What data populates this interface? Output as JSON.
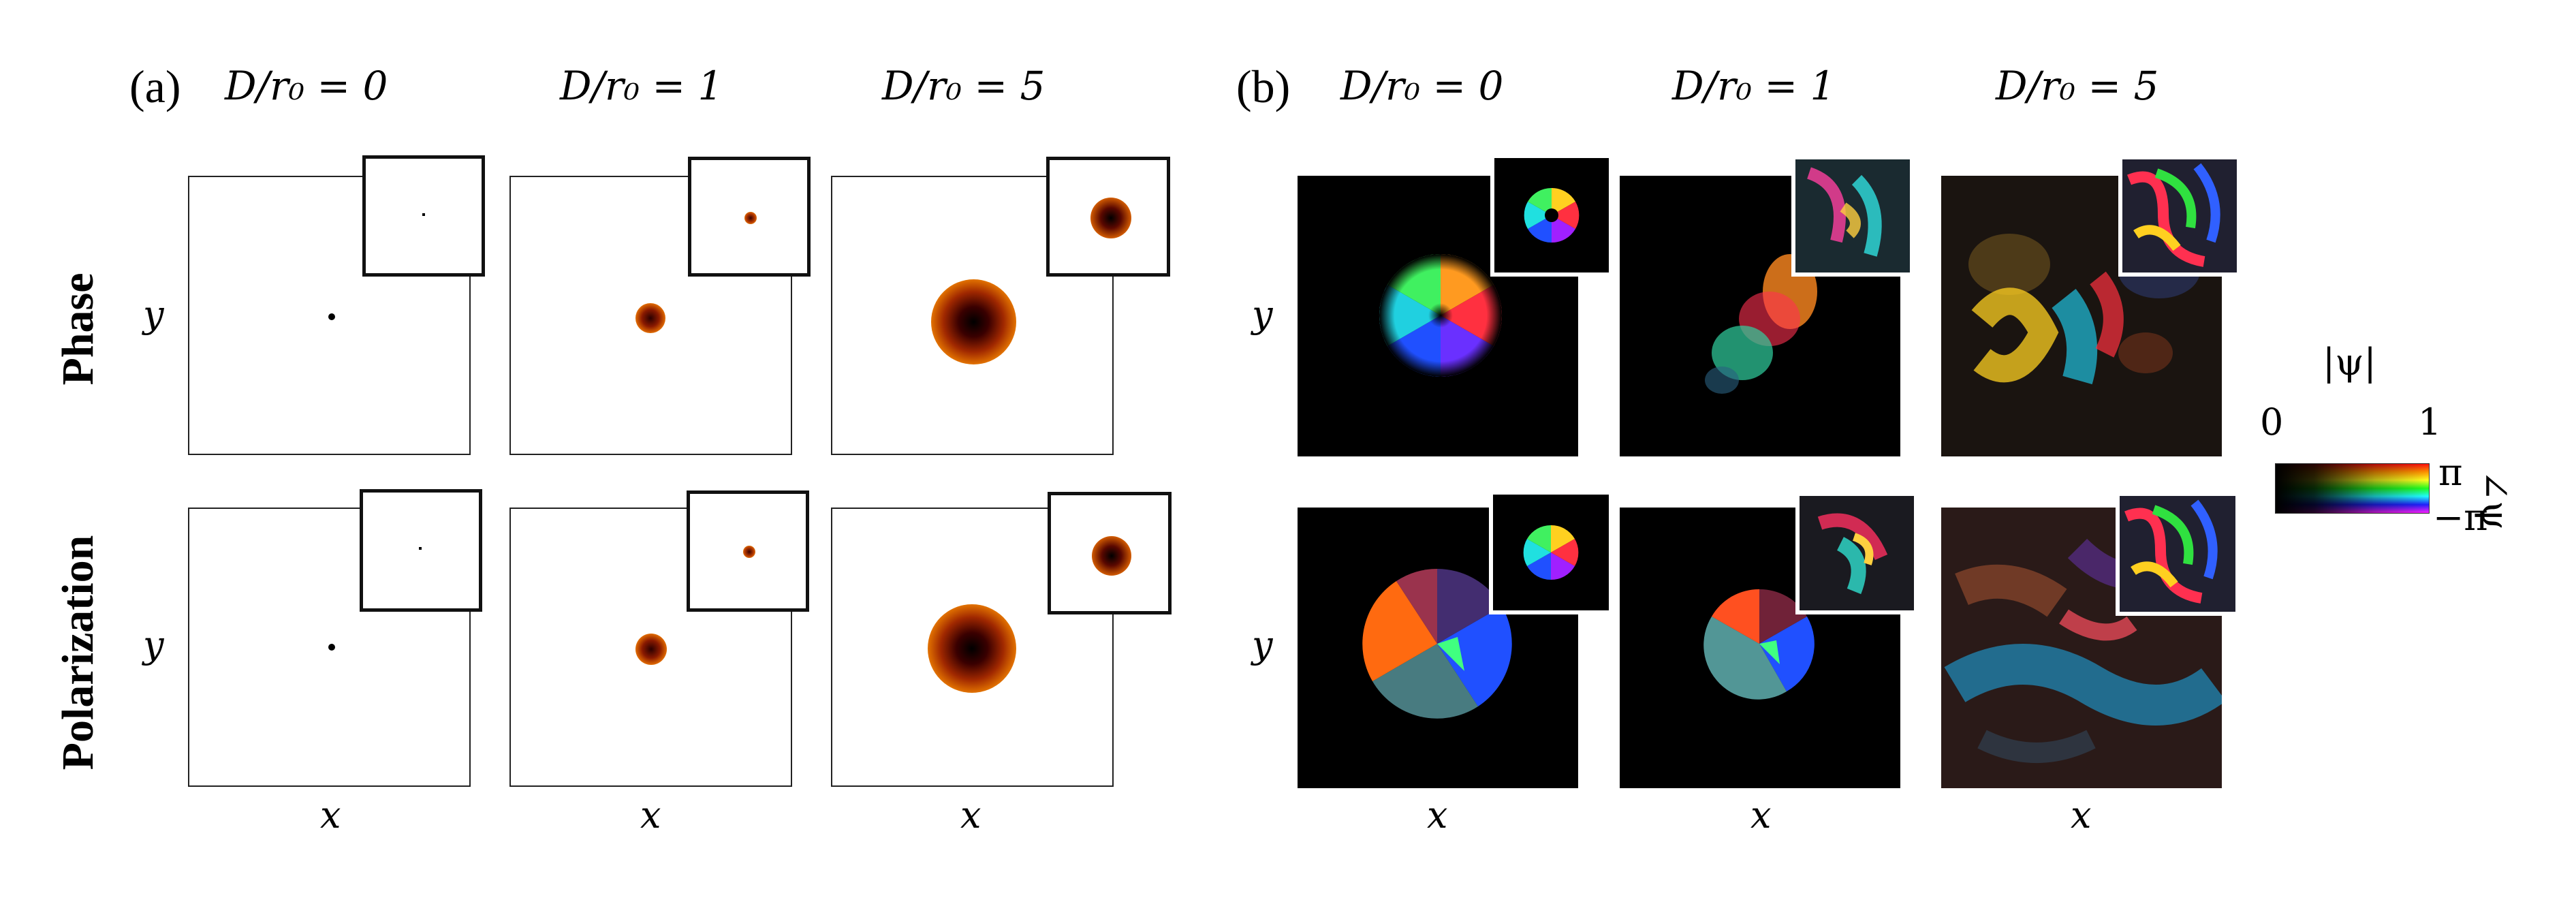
{
  "panel_a": {
    "label": "(a)",
    "columns": [
      "D/r₀ = 0",
      "D/r₀ = 1",
      "D/r₀ = 5"
    ],
    "rows": [
      "Phase",
      "Polarization"
    ],
    "x_label": "x",
    "y_label": "y"
  },
  "panel_b": {
    "label": "(b)",
    "columns": [
      "D/r₀ = 0",
      "D/r₀ = 1",
      "D/r₀ = 5"
    ],
    "x_label": "x",
    "y_label": "y"
  },
  "colorbar": {
    "magnitude_label": "|ψ|",
    "magnitude_min": "0",
    "magnitude_max": "1",
    "phase_max": "π",
    "phase_min": "−π",
    "phase_label": "∠ψ"
  }
}
